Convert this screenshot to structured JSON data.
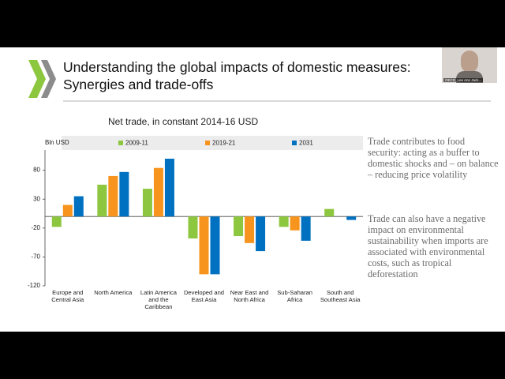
{
  "slide": {
    "title": "Understanding the global impacts of domestic measures: Synergies and trade-offs",
    "side_text": [
      "Trade contributes to food security:  acting as a buffer to domestic shocks and – on balance – reducing price volatility",
      "Trade can also have a negative impact on environmental sustainability when imports are associated with environmental costs, such as tropical deforestation"
    ]
  },
  "video": {
    "label": "OECD_Lee Ann Jack..."
  },
  "chart_data": {
    "type": "bar",
    "title": "Net trade, in constant 2014-16 USD",
    "y_label": "Bln USD",
    "categories": [
      "Europe and Central Asia",
      "North America",
      "Latin America and the Caribbean",
      "Developed and East Asia",
      "Near East and North Africa",
      "Sub-Saharan Africa",
      "South and Southeast Asia"
    ],
    "series": [
      {
        "name": "2009-11",
        "color": "#8dc63f",
        "values": [
          -18,
          55,
          48,
          -38,
          -34,
          -18,
          13
        ]
      },
      {
        "name": "2019-21",
        "color": "#f7941d",
        "values": [
          20,
          70,
          84,
          -100,
          -46,
          -24,
          0
        ]
      },
      {
        "name": "2031",
        "color": "#0070c0",
        "values": [
          35,
          77,
          100,
          -100,
          -60,
          -42,
          -6
        ]
      }
    ],
    "ylim": [
      -120,
      115
    ],
    "yticks": [
      80,
      30,
      -20,
      -70,
      -120
    ],
    "grid": false
  }
}
